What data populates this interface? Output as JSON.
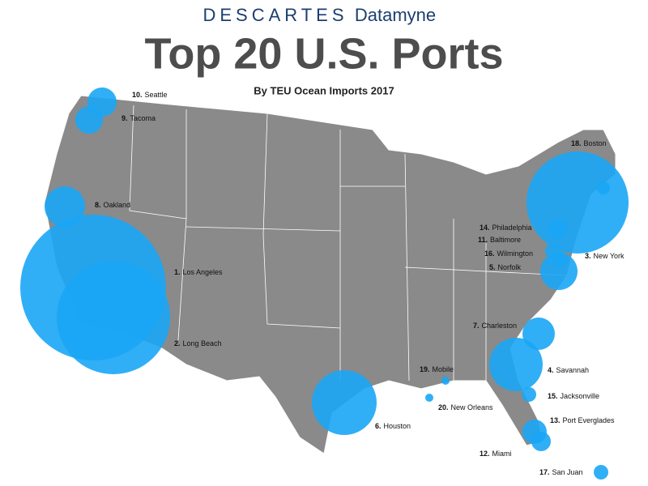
{
  "header": {
    "brand": "DESCARTES",
    "brand_sub": "Datamyne",
    "title": "Top 20 U.S. Ports",
    "subtitle": "By TEU Ocean Imports 2017"
  },
  "ports": [
    {
      "rank": "1.",
      "name": "Los Angeles"
    },
    {
      "rank": "2.",
      "name": "Long Beach"
    },
    {
      "rank": "3.",
      "name": "New York"
    },
    {
      "rank": "4.",
      "name": "Savannah"
    },
    {
      "rank": "5.",
      "name": "Norfolk"
    },
    {
      "rank": "6.",
      "name": "Houston"
    },
    {
      "rank": "7.",
      "name": "Charleston"
    },
    {
      "rank": "8.",
      "name": "Oakland"
    },
    {
      "rank": "9.",
      "name": "Tacoma"
    },
    {
      "rank": "10.",
      "name": "Seattle"
    },
    {
      "rank": "11.",
      "name": "Baltimore"
    },
    {
      "rank": "12.",
      "name": "Miami"
    },
    {
      "rank": "13.",
      "name": "Port Everglades"
    },
    {
      "rank": "14.",
      "name": "Philadelphia"
    },
    {
      "rank": "15.",
      "name": "Jacksonville"
    },
    {
      "rank": "16.",
      "name": "Wilmington"
    },
    {
      "rank": "17.",
      "name": "San Juan"
    },
    {
      "rank": "18.",
      "name": "Boston"
    },
    {
      "rank": "19.",
      "name": "Mobile"
    },
    {
      "rank": "20.",
      "name": "New Orleans"
    }
  ]
}
